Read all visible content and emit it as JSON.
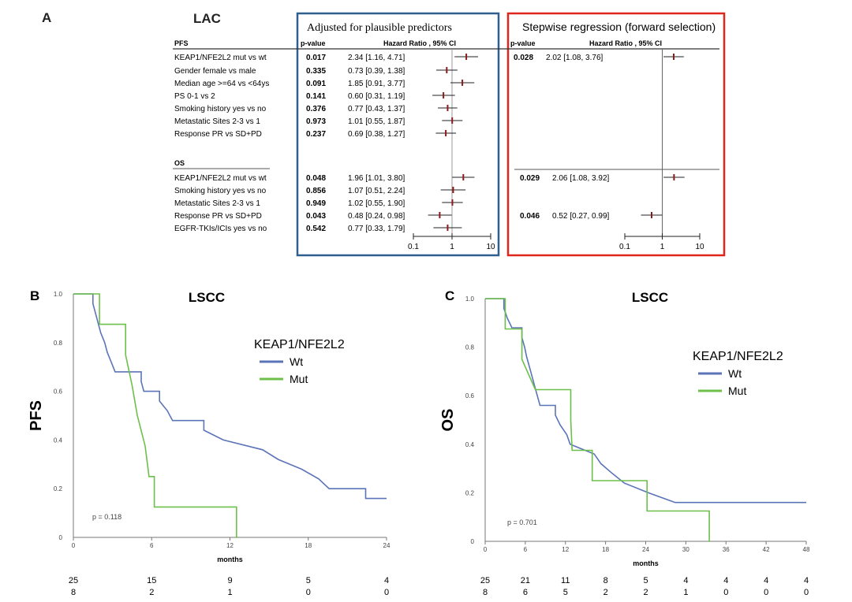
{
  "panel_a": {
    "label": "A",
    "title": "LAC",
    "left_box_title": "Adjusted for plausible predictors",
    "right_box_title": "Stepwise regression (forward selection)",
    "pvalue_header": "p-value",
    "hr_header": "Hazard Ratio , 95% CI",
    "colors": {
      "left_box": "#2f5f8f",
      "right_box": "#e0261c",
      "hr_marker": "#8b1a1a"
    },
    "axis_ticks": [
      "0.1",
      "1",
      "10"
    ]
  },
  "chart_data": [
    {
      "type": "forest",
      "panel": "A",
      "title": "LAC",
      "x_scale": "log",
      "xlim": [
        0.1,
        10
      ],
      "reference": 1,
      "sections": [
        {
          "name": "PFS",
          "rows": [
            {
              "label": "KEAP1/NFE2L2 mut vs wt",
              "p": "0.017",
              "hr_text": "2.34 [1.16, 4.71]",
              "hr": 2.34,
              "lo": 1.16,
              "hi": 4.71,
              "stepwise": {
                "p": "0.028",
                "hr_text": "2.02 [1.08, 3.76]",
                "hr": 2.02,
                "lo": 1.08,
                "hi": 3.76
              }
            },
            {
              "label": "Gender female vs male",
              "p": "0.335",
              "hr_text": "0.73 [0.39, 1.38]",
              "hr": 0.73,
              "lo": 0.39,
              "hi": 1.38
            },
            {
              "label": "Median age >=64 vs <64ys",
              "p": "0.091",
              "hr_text": "1.85 [0.91, 3.77]",
              "hr": 1.85,
              "lo": 0.91,
              "hi": 3.77
            },
            {
              "label": "PS 0-1 vs 2",
              "p": "0.141",
              "hr_text": "0.60 [0.31, 1.19]",
              "hr": 0.6,
              "lo": 0.31,
              "hi": 1.19
            },
            {
              "label": "Smoking history yes vs no",
              "p": "0.376",
              "hr_text": "0.77 [0.43, 1.37]",
              "hr": 0.77,
              "lo": 0.43,
              "hi": 1.37
            },
            {
              "label": "Metastatic Sites 2-3 vs 1",
              "p": "0.973",
              "hr_text": "1.01 [0.55, 1.87]",
              "hr": 1.01,
              "lo": 0.55,
              "hi": 1.87
            },
            {
              "label": "Response PR vs SD+PD",
              "p": "0.237",
              "hr_text": "0.69 [0.38, 1.27]",
              "hr": 0.69,
              "lo": 0.38,
              "hi": 1.27
            }
          ]
        },
        {
          "name": "OS",
          "rows": [
            {
              "label": "KEAP1/NFE2L2 mut vs wt",
              "p": "0.048",
              "hr_text": "1.96 [1.01, 3.80]",
              "hr": 1.96,
              "lo": 1.01,
              "hi": 3.8,
              "stepwise": {
                "p": "0.029",
                "hr_text": "2.06 [1.08, 3.92]",
                "hr": 2.06,
                "lo": 1.08,
                "hi": 3.92
              }
            },
            {
              "label": "Smoking history yes vs no",
              "p": "0.856",
              "hr_text": "1.07 [0.51, 2.24]",
              "hr": 1.07,
              "lo": 0.51,
              "hi": 2.24
            },
            {
              "label": "Metastatic Sites 2-3 vs 1",
              "p": "0.949",
              "hr_text": "1.02 [0.55, 1.90]",
              "hr": 1.02,
              "lo": 0.55,
              "hi": 1.9
            },
            {
              "label": "Response PR vs SD+PD",
              "p": "0.043",
              "hr_text": "0.48 [0.24, 0.98]",
              "hr": 0.48,
              "lo": 0.24,
              "hi": 0.98,
              "stepwise": {
                "p": "0.046",
                "hr_text": "0.52 [0.27, 0.99]",
                "hr": 0.52,
                "lo": 0.27,
                "hi": 0.99
              }
            },
            {
              "label": "EGFR-TKIs/ICIs yes vs no",
              "p": "0.542",
              "hr_text": "0.77 [0.33, 1.79]",
              "hr": 0.77,
              "lo": 0.33,
              "hi": 1.79
            }
          ]
        }
      ]
    },
    {
      "type": "line",
      "subtype": "kaplan-meier",
      "panel": "B",
      "title": "LSCC",
      "ylabel": "PFS",
      "xlabel": "months",
      "xlim": [
        0,
        24
      ],
      "ylim": [
        0,
        1
      ],
      "xticks": [
        0,
        6,
        12,
        18,
        24
      ],
      "yticks": [
        "0",
        "0.2",
        "0.4",
        "0.6",
        "0.8",
        "1.0"
      ],
      "legend_title": "KEAP1/NFE2L2",
      "annotation": "p = 0.118",
      "series": [
        {
          "name": "Wt",
          "color": "#5b74b8",
          "steps": [
            [
              0,
              1
            ],
            [
              1.5,
              1
            ],
            [
              1.5,
              0.96
            ],
            [
              1.7,
              0.92
            ],
            [
              1.9,
              0.88
            ],
            [
              2.1,
              0.84
            ],
            [
              2.4,
              0.8
            ],
            [
              2.6,
              0.76
            ],
            [
              2.9,
              0.72
            ],
            [
              3.2,
              0.68
            ],
            [
              4.2,
              0.68
            ],
            [
              4.2,
              0.68
            ],
            [
              4.6,
              0.68
            ],
            [
              5.2,
              0.68
            ],
            [
              5.2,
              0.64
            ],
            [
              5.4,
              0.6
            ],
            [
              6.6,
              0.6
            ],
            [
              6.6,
              0.56
            ],
            [
              7.2,
              0.52
            ],
            [
              7.6,
              0.48
            ],
            [
              10,
              0.48
            ],
            [
              10,
              0.44
            ],
            [
              11.5,
              0.4
            ],
            [
              14.5,
              0.36
            ],
            [
              15.7,
              0.32
            ],
            [
              17.5,
              0.28
            ],
            [
              18.8,
              0.24
            ],
            [
              19.6,
              0.2
            ],
            [
              22.4,
              0.2
            ],
            [
              22.4,
              0.16
            ],
            [
              24,
              0.16
            ]
          ]
        },
        {
          "name": "Mut",
          "color": "#6cc04a",
          "steps": [
            [
              0,
              1
            ],
            [
              2,
              1
            ],
            [
              2,
              0.875
            ],
            [
              4,
              0.875
            ],
            [
              4,
              0.75
            ],
            [
              4.5,
              0.625
            ],
            [
              4.9,
              0.5
            ],
            [
              5.5,
              0.375
            ],
            [
              5.8,
              0.25
            ],
            [
              6.2,
              0.25
            ],
            [
              6.2,
              0.125
            ],
            [
              7.8,
              0.125
            ],
            [
              12.5,
              0.125
            ],
            [
              12.5,
              0
            ],
            [
              12.6,
              0
            ]
          ]
        }
      ],
      "risk_table": {
        "x": [
          0,
          6,
          12,
          18,
          24
        ],
        "rows": [
          [
            "25",
            "15",
            "9",
            "5",
            "4"
          ],
          [
            "8",
            "2",
            "1",
            "0",
            "0"
          ]
        ]
      }
    },
    {
      "type": "line",
      "subtype": "kaplan-meier",
      "panel": "C",
      "title": "LSCC",
      "ylabel": "OS",
      "xlabel": "months",
      "xlim": [
        0,
        48
      ],
      "ylim": [
        0,
        1
      ],
      "xticks": [
        0,
        6,
        12,
        18,
        24,
        30,
        36,
        42,
        48
      ],
      "yticks": [
        "0",
        "0.2",
        "0.4",
        "0.6",
        "0.8",
        "1.0"
      ],
      "legend_title": "KEAP1/NFE2L2",
      "annotation": "p = 0.701",
      "series": [
        {
          "name": "Wt",
          "color": "#5b74b8",
          "steps": [
            [
              0,
              1
            ],
            [
              2.8,
              1
            ],
            [
              2.8,
              0.96
            ],
            [
              3.3,
              0.92
            ],
            [
              4,
              0.88
            ],
            [
              5.5,
              0.88
            ],
            [
              5.5,
              0.84
            ],
            [
              5.9,
              0.8
            ],
            [
              6.2,
              0.76
            ],
            [
              6.6,
              0.72
            ],
            [
              7,
              0.68
            ],
            [
              7.4,
              0.64
            ],
            [
              7.8,
              0.6
            ],
            [
              8.2,
              0.56
            ],
            [
              10.5,
              0.56
            ],
            [
              10.5,
              0.52
            ],
            [
              11.2,
              0.48
            ],
            [
              12.2,
              0.44
            ],
            [
              12.7,
              0.4
            ],
            [
              14.5,
              0.38
            ],
            [
              16.3,
              0.36
            ],
            [
              17.3,
              0.32
            ],
            [
              19,
              0.28
            ],
            [
              20.8,
              0.24
            ],
            [
              24.4,
              0.2
            ],
            [
              28.4,
              0.16
            ],
            [
              48,
              0.16
            ]
          ]
        },
        {
          "name": "Mut",
          "color": "#6cc04a",
          "steps": [
            [
              0,
              1
            ],
            [
              3,
              1
            ],
            [
              3,
              0.875
            ],
            [
              5.5,
              0.875
            ],
            [
              5.5,
              0.75
            ],
            [
              7.5,
              0.625
            ],
            [
              7.5,
              0.625
            ],
            [
              12.8,
              0.625
            ],
            [
              12.8,
              0.5
            ],
            [
              13,
              0.375
            ],
            [
              16,
              0.375
            ],
            [
              16,
              0.25
            ],
            [
              24.2,
              0.25
            ],
            [
              24.2,
              0.125
            ],
            [
              33.5,
              0.125
            ],
            [
              33.5,
              0
            ],
            [
              33.6,
              0
            ]
          ]
        }
      ],
      "risk_table": {
        "x": [
          0,
          6,
          12,
          18,
          24,
          30,
          36,
          42,
          48
        ],
        "rows": [
          [
            "25",
            "21",
            "11",
            "8",
            "5",
            "4",
            "4",
            "4",
            "4"
          ],
          [
            "8",
            "6",
            "5",
            "2",
            "2",
            "1",
            "0",
            "0",
            "0"
          ]
        ]
      }
    }
  ]
}
